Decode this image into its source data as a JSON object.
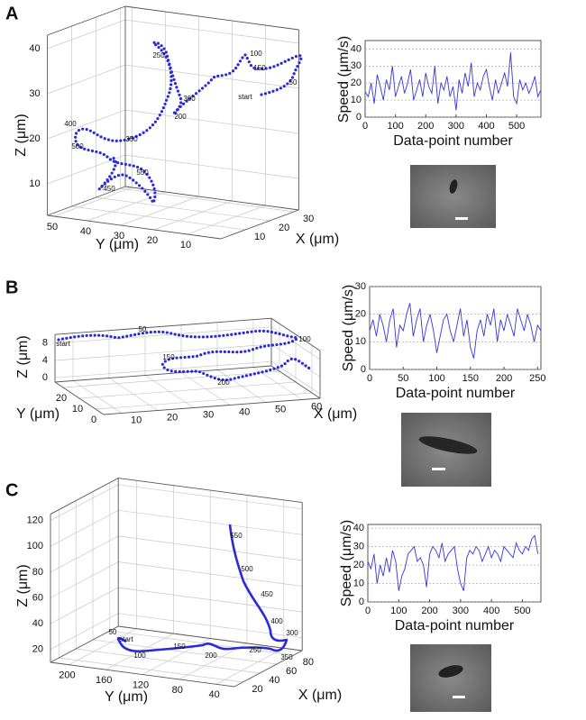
{
  "panel_labels": [
    "A",
    "B",
    "C"
  ],
  "chart_data": [
    {
      "type": "3d",
      "xlabel": "X (μm)",
      "ylabel": "Y (μm)",
      "zlabel": "Z (μm)",
      "xlim": [
        0,
        32
      ],
      "ylim": [
        0,
        52
      ],
      "zlim": [
        3,
        43
      ],
      "xticks": [
        10,
        20,
        30
      ],
      "yticks": [
        10,
        20,
        30,
        40,
        50
      ],
      "zticks": [
        10,
        20,
        30,
        40
      ],
      "grid": true,
      "color": "#2a2ad8",
      "annotations": [
        "400",
        "500",
        "350",
        "550",
        "450",
        "250",
        "300",
        "200",
        "100",
        "150",
        "50",
        "start"
      ]
    },
    {
      "type": "line",
      "xlabel": "Data-point number",
      "ylabel": "Speed (μm/s)",
      "xlim": [
        0,
        580
      ],
      "ylim": [
        0,
        45
      ],
      "xticks": [
        0,
        100,
        200,
        300,
        400,
        500
      ],
      "yticks": [
        0,
        10,
        20,
        30,
        40
      ],
      "grid": true,
      "x": [
        0,
        10,
        20,
        30,
        40,
        50,
        60,
        70,
        80,
        90,
        100,
        110,
        120,
        130,
        140,
        150,
        160,
        170,
        180,
        190,
        200,
        210,
        220,
        230,
        240,
        250,
        260,
        270,
        280,
        290,
        300,
        310,
        320,
        330,
        340,
        350,
        360,
        370,
        380,
        390,
        400,
        410,
        420,
        430,
        440,
        450,
        460,
        470,
        480,
        490,
        500,
        510,
        520,
        530,
        540,
        550,
        560,
        570,
        580
      ],
      "series": [
        {
          "color": "#3535e0",
          "values": [
            15,
            12,
            20,
            8,
            25,
            18,
            10,
            22,
            16,
            30,
            12,
            18,
            24,
            14,
            20,
            28,
            10,
            16,
            22,
            12,
            26,
            18,
            14,
            30,
            8,
            20,
            16,
            24,
            12,
            18,
            4,
            22,
            14,
            26,
            18,
            32,
            12,
            20,
            16,
            24,
            28,
            18,
            10,
            22,
            14,
            20,
            26,
            18,
            38,
            12,
            8,
            22,
            16,
            20,
            14,
            18,
            24,
            12,
            16
          ]
        }
      ]
    },
    {
      "type": "3d",
      "xlabel": "X (μm)",
      "ylabel": "Y (μm)",
      "zlabel": "Z (μm)",
      "xlim": [
        5,
        65
      ],
      "ylim": [
        -5,
        25
      ],
      "zlim": [
        -1,
        10
      ],
      "xticks": [
        10,
        20,
        30,
        40,
        50,
        60
      ],
      "yticks": [
        0,
        10,
        20
      ],
      "zticks": [
        0,
        4,
        8
      ],
      "grid": true,
      "color": "#2a2ad8",
      "annotations": [
        "start",
        "50",
        "100",
        "150",
        "200"
      ]
    },
    {
      "type": "line",
      "xlabel": "Data-point number",
      "ylabel": "Speed (μm/s)",
      "xlim": [
        0,
        255
      ],
      "ylim": [
        0,
        30
      ],
      "xticks": [
        0,
        50,
        100,
        150,
        200,
        250
      ],
      "yticks": [
        0,
        10,
        20,
        30
      ],
      "grid": true,
      "x": [
        0,
        5,
        10,
        15,
        20,
        25,
        30,
        35,
        40,
        45,
        50,
        55,
        60,
        65,
        70,
        75,
        80,
        85,
        90,
        95,
        100,
        105,
        110,
        115,
        120,
        125,
        130,
        135,
        140,
        145,
        150,
        155,
        160,
        165,
        170,
        175,
        180,
        185,
        190,
        195,
        200,
        205,
        210,
        215,
        220,
        225,
        230,
        235,
        240,
        245,
        250,
        255
      ],
      "series": [
        {
          "color": "#3535e0",
          "values": [
            14,
            18,
            12,
            20,
            16,
            10,
            18,
            22,
            8,
            16,
            14,
            20,
            24,
            12,
            18,
            22,
            10,
            16,
            20,
            14,
            6,
            12,
            18,
            20,
            14,
            10,
            16,
            22,
            12,
            18,
            8,
            4,
            14,
            18,
            12,
            20,
            16,
            22,
            10,
            18,
            14,
            20,
            16,
            12,
            22,
            18,
            14,
            20,
            16,
            10,
            16,
            14
          ]
        }
      ]
    },
    {
      "type": "3d",
      "xlabel": "X (μm)",
      "ylabel": "Y (μm)",
      "zlabel": "Z (μm)",
      "xlim": [
        10,
        90
      ],
      "ylim": [
        20,
        220
      ],
      "zlim": [
        10,
        125
      ],
      "xticks": [
        20,
        40,
        60,
        80
      ],
      "yticks": [
        40,
        80,
        120,
        160,
        200
      ],
      "zticks": [
        20,
        40,
        60,
        80,
        100,
        120
      ],
      "grid": true,
      "color": "#2a2ad8",
      "annotations": [
        "550",
        "500",
        "450",
        "400",
        "300",
        "250",
        "350",
        "50",
        "start",
        "100",
        "150",
        "200"
      ]
    },
    {
      "type": "line",
      "xlabel": "Data-point number",
      "ylabel": "Speed (μm/s)",
      "xlim": [
        0,
        560
      ],
      "ylim": [
        0,
        42
      ],
      "xticks": [
        0,
        100,
        200,
        300,
        400,
        500
      ],
      "yticks": [
        0,
        10,
        20,
        30,
        40
      ],
      "grid": true,
      "x": [
        0,
        10,
        20,
        30,
        40,
        50,
        60,
        70,
        80,
        90,
        100,
        110,
        120,
        130,
        140,
        150,
        160,
        170,
        180,
        190,
        200,
        210,
        220,
        230,
        240,
        250,
        260,
        270,
        280,
        290,
        300,
        310,
        320,
        330,
        340,
        350,
        360,
        370,
        380,
        390,
        400,
        410,
        420,
        430,
        440,
        450,
        460,
        470,
        480,
        490,
        500,
        510,
        520,
        530,
        540,
        550
      ],
      "series": [
        {
          "color": "#3535e0",
          "values": [
            22,
            18,
            26,
            10,
            20,
            14,
            24,
            16,
            28,
            22,
            6,
            14,
            18,
            26,
            28,
            30,
            22,
            24,
            20,
            8,
            26,
            30,
            28,
            24,
            32,
            22,
            26,
            28,
            30,
            18,
            10,
            6,
            24,
            28,
            26,
            30,
            28,
            22,
            26,
            30,
            24,
            28,
            26,
            22,
            30,
            28,
            26,
            24,
            32,
            28,
            26,
            30,
            28,
            34,
            36,
            26
          ]
        }
      ]
    }
  ]
}
